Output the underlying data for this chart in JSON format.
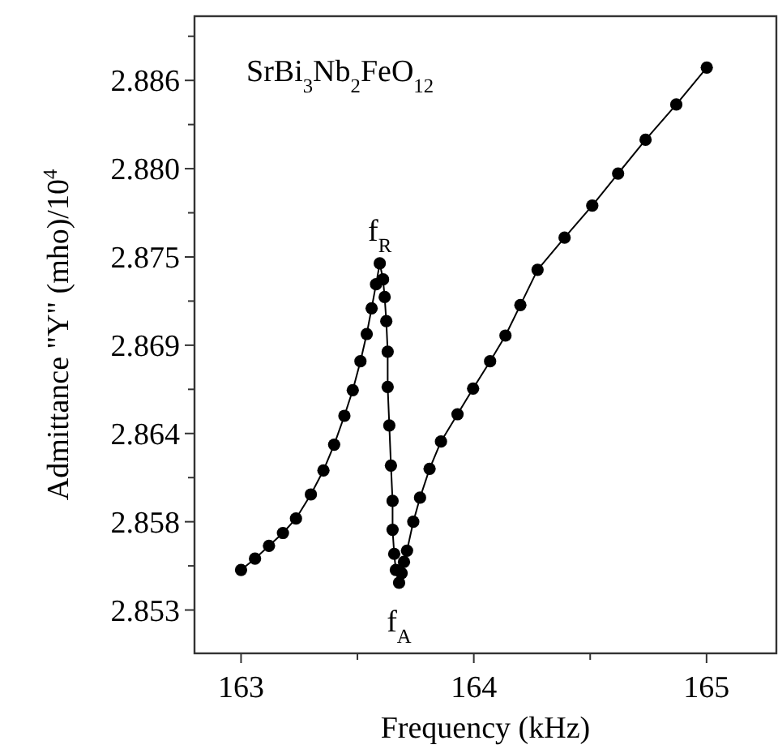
{
  "chart_data": {
    "type": "line",
    "title": "SrBi$_{3}$Nb$_{2}$FeO$_{12}$",
    "xlabel": "Frequency (kHz)",
    "ylabel": "Admittance \"Y\" (mho)/10$^{4}$",
    "x": [
      163.0,
      163.06,
      163.12,
      163.18,
      163.236,
      163.3,
      163.354,
      163.4,
      163.444,
      163.48,
      163.513,
      163.54,
      163.561,
      163.58,
      163.596,
      163.61,
      163.617,
      163.624,
      163.63,
      163.63,
      163.637,
      163.644,
      163.651,
      163.651,
      163.658,
      163.665,
      163.679,
      163.69,
      163.7,
      163.713,
      163.74,
      163.769,
      163.81,
      163.859,
      163.93,
      163.997,
      164.07,
      164.136,
      164.2,
      164.274,
      164.39,
      164.509,
      164.62,
      164.738,
      164.87,
      165.001
    ],
    "series": [
      {
        "color": "#000000",
        "values": [
          2.8555,
          2.8562,
          2.857,
          2.8578,
          2.8587,
          2.8602,
          2.8617,
          2.8633,
          2.8651,
          2.8667,
          2.8685,
          2.8702,
          2.8718,
          2.8733,
          2.8746,
          2.8736,
          2.8725,
          2.871,
          2.8691,
          2.8669,
          2.8645,
          2.862,
          2.8598,
          2.858,
          2.8565,
          2.8555,
          2.8547,
          2.8553,
          2.856,
          2.8567,
          2.8585,
          2.86,
          2.8618,
          2.8635,
          2.8652,
          2.8668,
          2.8685,
          2.8701,
          2.872,
          2.8742,
          2.8762,
          2.8782,
          2.8802,
          2.8823,
          2.8845,
          2.8868
        ]
      }
    ],
    "xlim": [
      162.8,
      165.3
    ],
    "xticks": [
      163,
      {
        "value": 163.5,
        "label": null
      },
      164,
      {
        "value": 164.5,
        "label": null
      },
      165
    ],
    "ylim": [
      2.8503,
      2.89
    ],
    "yticks": [
      {
        "value": 2.853,
        "label": "2.853"
      },
      {
        "value": 2.85575,
        "label": null
      },
      {
        "value": 2.8585,
        "label": "2.858"
      },
      {
        "value": 2.86125,
        "label": null
      },
      {
        "value": 2.864,
        "label": "2.864"
      },
      {
        "value": 2.86675,
        "label": null
      },
      {
        "value": 2.8695,
        "label": "2.869"
      },
      {
        "value": 2.87225,
        "label": null
      },
      {
        "value": 2.875,
        "label": "2.875"
      },
      {
        "value": 2.87775,
        "label": null
      },
      {
        "value": 2.8805,
        "label": "2.880"
      },
      {
        "value": 2.88325,
        "label": null
      },
      {
        "value": 2.886,
        "label": "2.886"
      },
      {
        "value": 2.88875,
        "label": null
      }
    ],
    "annotations": [
      {
        "text": "f$_{R}$",
        "x": 163.596,
        "y": 2.8746
      },
      {
        "text": "f$_{A}$",
        "x": 163.679,
        "y": 2.8547
      }
    ],
    "marker": "circle",
    "line_style": "solid",
    "grid": false
  }
}
